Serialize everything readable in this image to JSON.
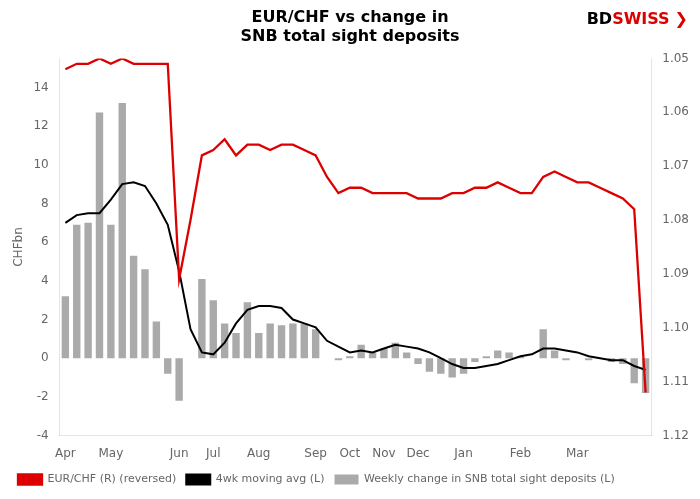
{
  "chart_data": {
    "type": "bar",
    "title": "EUR/CHF vs change in\nSNB total sight deposits",
    "ylabel": "CHFbn",
    "categories": [
      "Apr",
      null,
      null,
      null,
      "May",
      null,
      null,
      null,
      null,
      null,
      "Jun",
      null,
      null,
      "Jul",
      null,
      null,
      null,
      "Aug",
      null,
      null,
      null,
      null,
      "Sep",
      null,
      null,
      "Oct",
      null,
      null,
      "Nov",
      null,
      null,
      "Dec",
      null,
      null,
      null,
      "Jan",
      null,
      null,
      null,
      null,
      "Feb",
      null,
      null,
      null,
      null,
      "Mar",
      null,
      null,
      null,
      null,
      null,
      null
    ],
    "series": [
      {
        "name": "Weekly change in SNB total sight deposits (L)",
        "type": "bar",
        "color": "#aaaaaa",
        "values": [
          3.2,
          6.9,
          7.0,
          12.7,
          6.9,
          13.2,
          5.3,
          4.6,
          1.9,
          -0.8,
          -2.2,
          0.0,
          4.1,
          3.0,
          1.8,
          1.3,
          2.9,
          1.3,
          1.8,
          1.7,
          1.8,
          1.8,
          1.5,
          0.0,
          -0.1,
          0.1,
          0.7,
          0.3,
          0.5,
          0.8,
          0.3,
          -0.3,
          -0.7,
          -0.8,
          -1.0,
          -0.8,
          -0.2,
          0.1,
          0.4,
          0.3,
          0.1,
          0.0,
          1.5,
          0.4,
          -0.1,
          0.0,
          -0.1,
          0.0,
          -0.2,
          -0.3,
          -1.3,
          -1.8
        ]
      },
      {
        "name": "4wk moving avg (L)",
        "type": "line",
        "color": "#000000",
        "values": [
          7.0,
          7.4,
          7.5,
          7.5,
          8.2,
          9.0,
          9.1,
          8.9,
          8.0,
          6.9,
          4.5,
          1.5,
          0.3,
          0.2,
          0.8,
          1.8,
          2.5,
          2.7,
          2.7,
          2.6,
          2.0,
          1.8,
          1.6,
          0.9,
          0.6,
          0.3,
          0.4,
          0.3,
          0.5,
          0.7,
          0.6,
          0.5,
          0.3,
          0.0,
          -0.3,
          -0.5,
          -0.5,
          -0.4,
          -0.3,
          -0.1,
          0.1,
          0.2,
          0.5,
          0.5,
          0.4,
          0.3,
          0.1,
          0.0,
          -0.1,
          -0.1,
          -0.4,
          -0.6
        ]
      },
      {
        "name": "EUR/CHF (R) (reversed)",
        "type": "line",
        "color": "#dd0000",
        "axis": "y2",
        "values": [
          1.052,
          1.051,
          1.051,
          1.05,
          1.051,
          1.05,
          1.051,
          1.051,
          1.051,
          1.051,
          1.091,
          1.08,
          1.068,
          1.067,
          1.065,
          1.068,
          1.066,
          1.066,
          1.067,
          1.066,
          1.066,
          1.067,
          1.068,
          1.072,
          1.075,
          1.074,
          1.074,
          1.075,
          1.075,
          1.075,
          1.075,
          1.076,
          1.076,
          1.076,
          1.075,
          1.075,
          1.074,
          1.074,
          1.073,
          1.074,
          1.075,
          1.075,
          1.072,
          1.071,
          1.072,
          1.073,
          1.073,
          1.074,
          1.075,
          1.076,
          1.078,
          1.112
        ]
      }
    ],
    "ylim": [
      -4,
      15.5
    ],
    "yticks": [
      -4,
      -2,
      0,
      2,
      4,
      6,
      8,
      10,
      12,
      14
    ],
    "y2lim": [
      1.12,
      1.05
    ],
    "y2ticks": [
      1.05,
      1.06,
      1.07,
      1.08,
      1.09,
      {
        "value": 1.1,
        "label": "1.10"
      },
      1.11,
      1.12
    ],
    "grid": false,
    "legend": "lower left",
    "annotations": [
      {
        "text": "BD",
        "color": "#000000"
      },
      {
        "text": "SWISS",
        "color": "#dd0000"
      },
      {
        "text": "❯",
        "color": "#dd0000"
      }
    ]
  }
}
